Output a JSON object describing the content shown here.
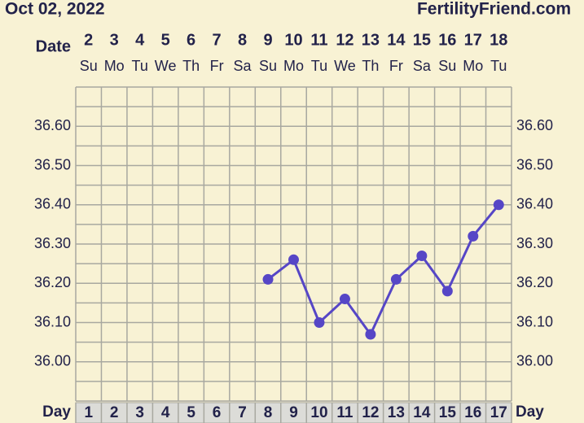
{
  "chart_data": {
    "type": "line",
    "title": "Oct 02, 2022",
    "source": "FertilityFriend.com",
    "date_label": "Date",
    "day_label": "Day",
    "dates": [
      "2",
      "3",
      "4",
      "5",
      "6",
      "7",
      "8",
      "9",
      "10",
      "11",
      "12",
      "13",
      "14",
      "15",
      "16",
      "17",
      "18"
    ],
    "weekdays": [
      "Su",
      "Mo",
      "Tu",
      "We",
      "Th",
      "Fr",
      "Sa",
      "Su",
      "Mo",
      "Tu",
      "We",
      "Th",
      "Fr",
      "Sa",
      "Su",
      "Mo",
      "Tu"
    ],
    "categories": [
      "1",
      "2",
      "3",
      "4",
      "5",
      "6",
      "7",
      "8",
      "9",
      "10",
      "11",
      "12",
      "13",
      "14",
      "15",
      "16",
      "17"
    ],
    "series": [
      {
        "color": "#5646c6",
        "values": [
          null,
          null,
          null,
          null,
          null,
          null,
          null,
          36.21,
          36.26,
          36.1,
          36.16,
          36.07,
          36.21,
          36.27,
          36.18,
          36.32,
          36.4
        ]
      }
    ],
    "ylim": [
      35.9,
      36.7
    ],
    "yticks": [
      {
        "value": 36.0,
        "label": "36.00"
      },
      {
        "value": 36.1,
        "label": "36.10"
      },
      {
        "value": 36.2,
        "label": "36.20"
      },
      {
        "value": 36.3,
        "label": "36.30"
      },
      {
        "value": 36.4,
        "label": "36.40"
      },
      {
        "value": 36.5,
        "label": "36.50"
      },
      {
        "value": 36.6,
        "label": "36.60"
      }
    ],
    "minor_yticks": [
      35.95,
      36.05,
      36.15,
      36.25,
      36.35,
      36.45,
      36.55,
      36.65
    ],
    "grid": true,
    "grid_color": "#a8a8a0"
  }
}
